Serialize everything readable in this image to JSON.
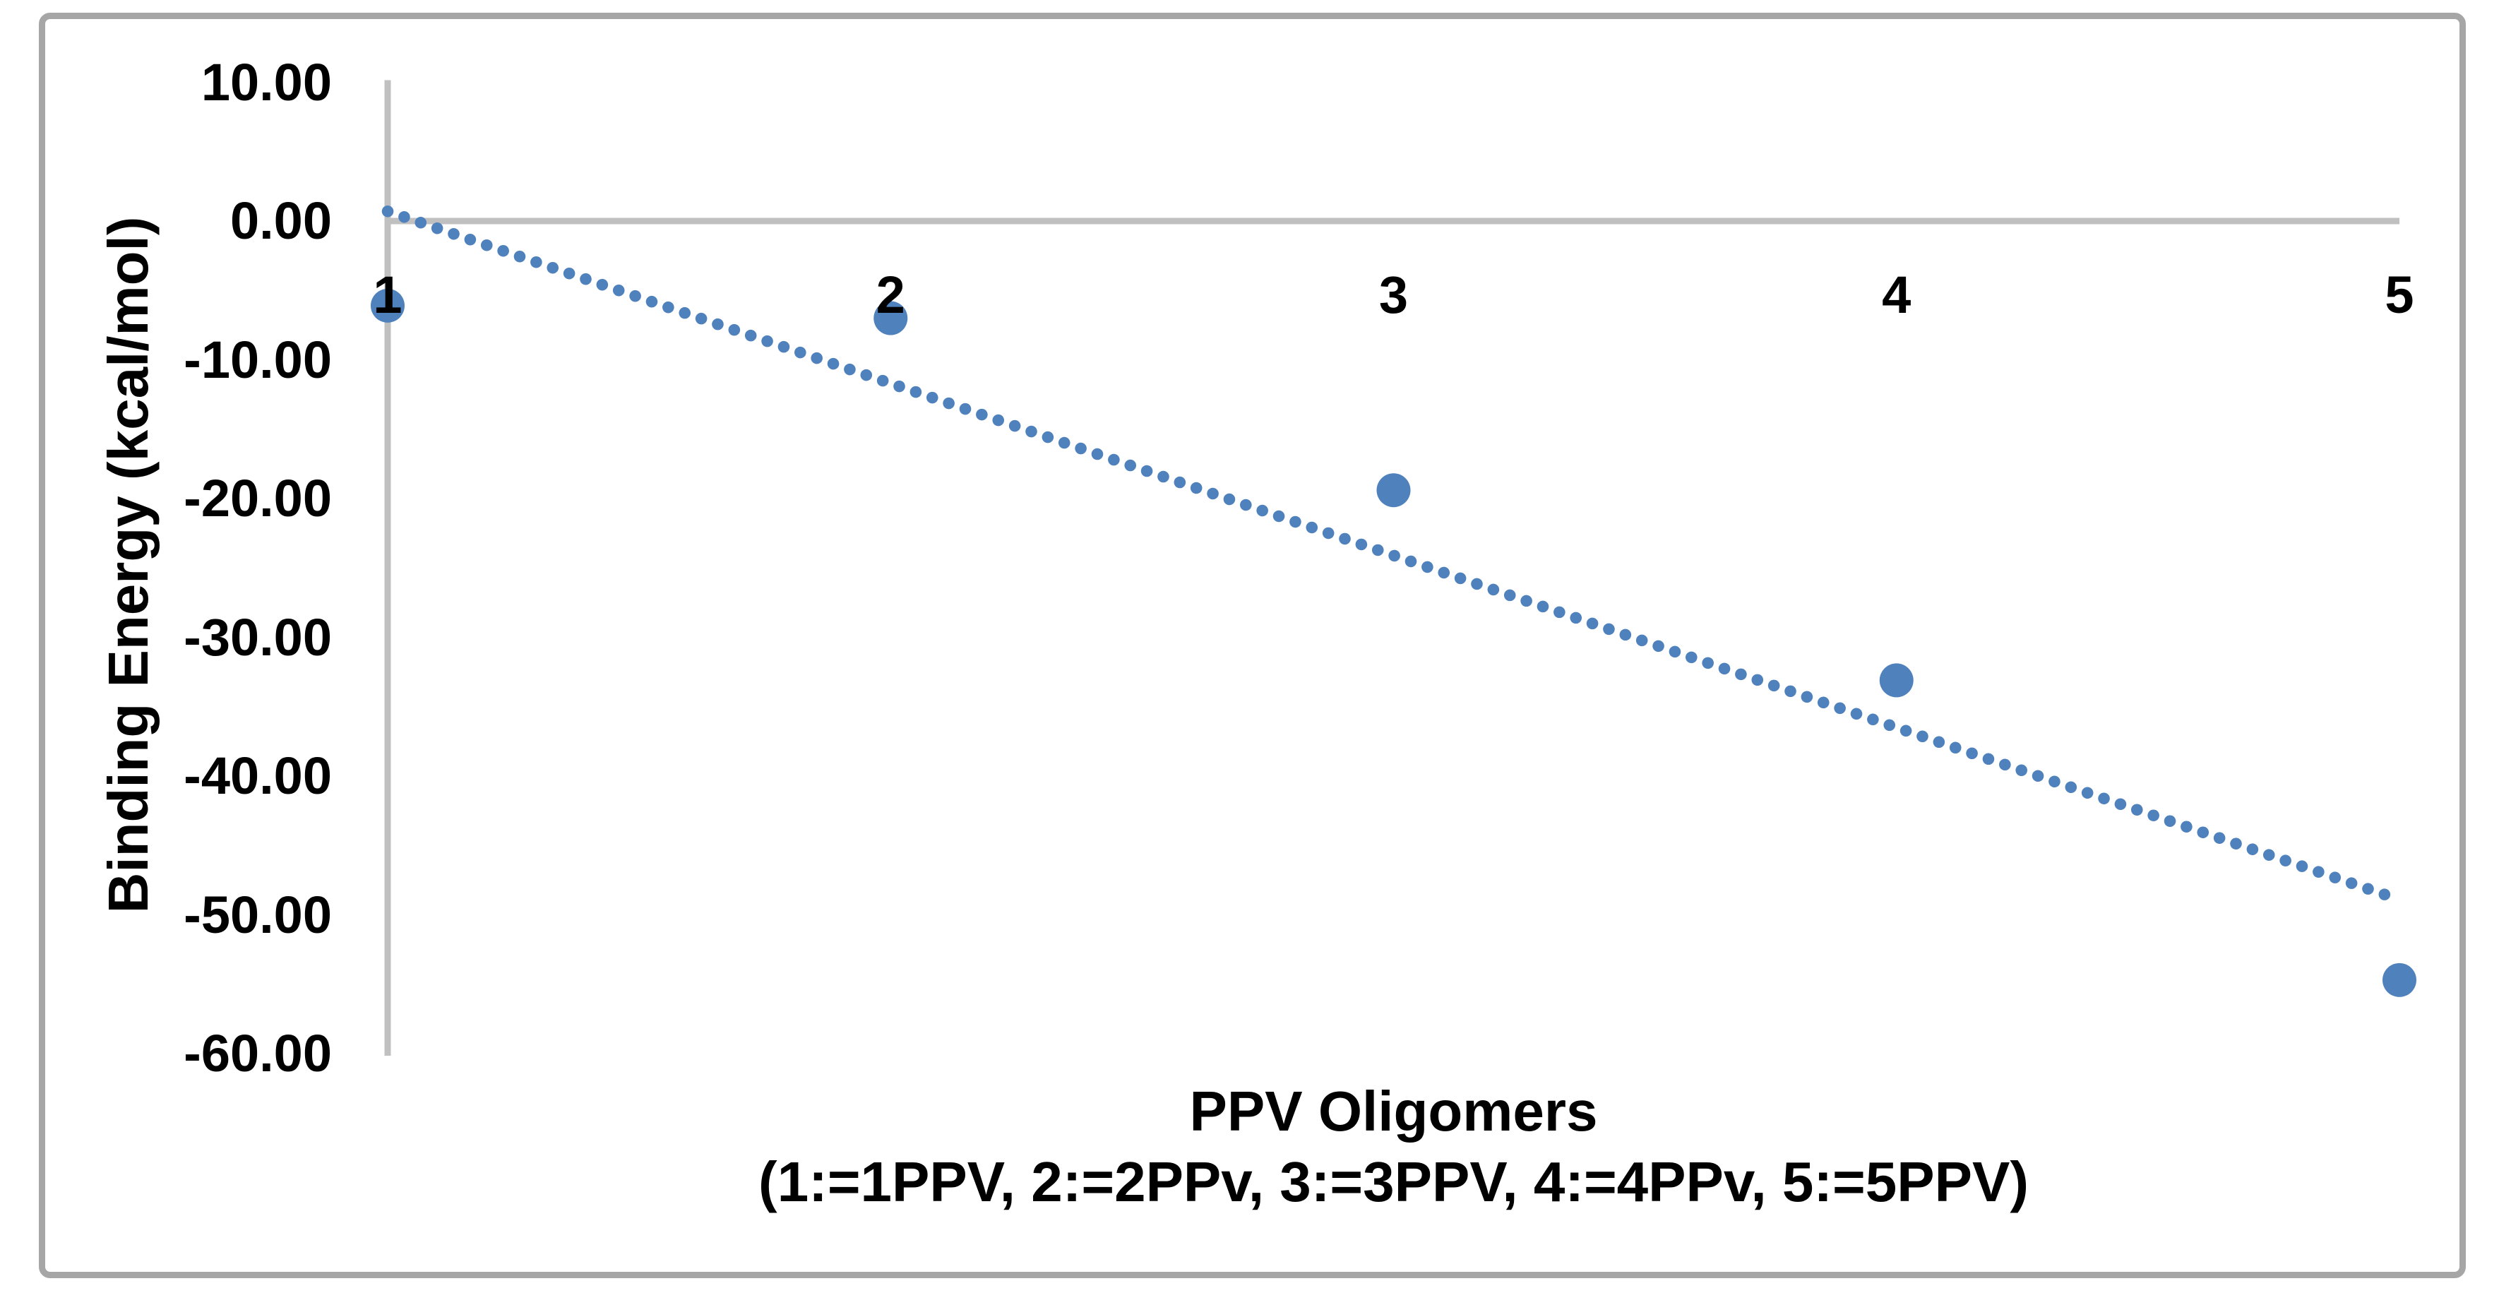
{
  "chart": {
    "y_axis_title": "Binding Energy (kcal/mol)",
    "x_axis_title_line1": "PPV Oligomers",
    "x_axis_title_line2": "(1:=1PPV, 2:=2PPv, 3:=3PPV, 4:=4PPv, 5:=5PPV)"
  },
  "chart_data": {
    "type": "scatter",
    "title": "",
    "xlabel": "PPV Oligomers (1:=1PPV, 2:=2PPv, 3:=3PPV, 4:=4PPv, 5:=5PPV)",
    "ylabel": "Binding Energy (kcal/mol)",
    "x": [
      1,
      2,
      3,
      4,
      5
    ],
    "y": [
      -6.1,
      -7.0,
      -19.4,
      -33.1,
      -54.7
    ],
    "x_tick_labels": [
      "1",
      "2",
      "3",
      "4",
      "5"
    ],
    "y_tick_labels": [
      "10.00",
      "0.00",
      "-10.00",
      "-20.00",
      "-30.00",
      "-40.00",
      "-50.00",
      "-60.00"
    ],
    "y_tick_values": [
      10,
      0,
      -10,
      -20,
      -30,
      -40,
      -50,
      -60
    ],
    "xlim": [
      1,
      5
    ],
    "ylim": [
      -60,
      10
    ],
    "grid": "zero-line-only",
    "legend": "none",
    "trendline": {
      "style": "dotted",
      "x": [
        1,
        5
      ],
      "y": [
        0.7,
        -48.9
      ]
    },
    "colors": {
      "marker": "#4f81bd",
      "trendline": "#4f81bd",
      "axis_line": "#c0c0c0",
      "zero_line": "#c0c0c0",
      "frame": "#a6a6a6",
      "text": "#000000"
    }
  }
}
